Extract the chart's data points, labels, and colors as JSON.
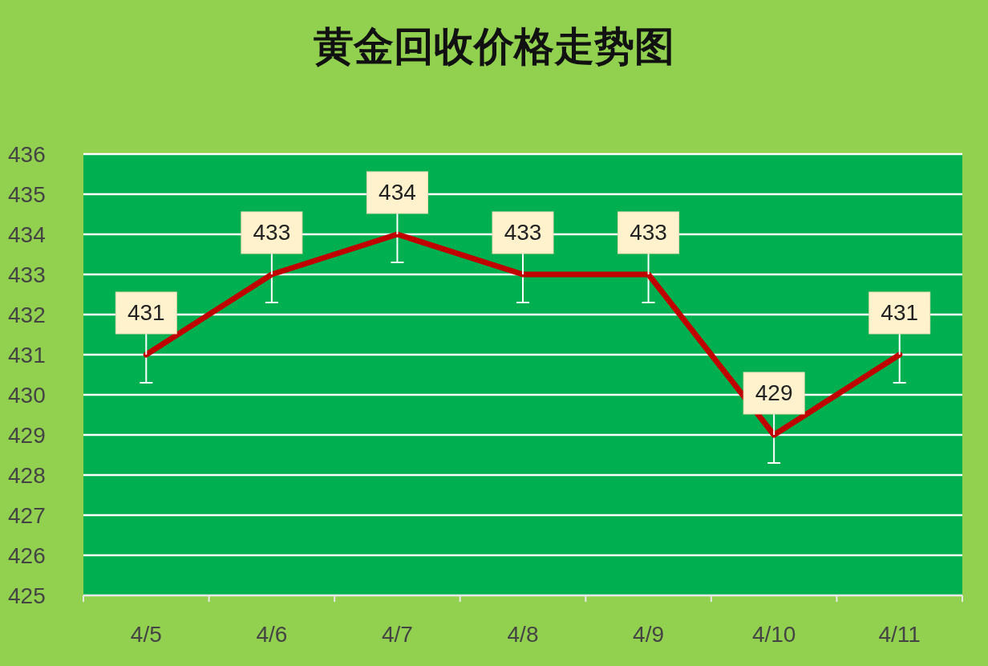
{
  "chart_data": {
    "type": "line",
    "title": "黄金回收价格走势图",
    "categories": [
      "4/5",
      "4/6",
      "4/7",
      "4/8",
      "4/9",
      "4/10",
      "4/11"
    ],
    "series": [
      {
        "color": "#c00000",
        "values": [
          431,
          433,
          434,
          433,
          433,
          429,
          431
        ],
        "errors": [
          [
            430.3,
            431
          ],
          [
            432.3,
            433
          ],
          [
            433.3,
            434
          ],
          [
            432.3,
            433
          ],
          [
            432.3,
            433
          ],
          [
            428.3,
            429
          ],
          [
            430.3,
            431
          ]
        ]
      }
    ],
    "ylim": [
      425,
      436
    ],
    "yticks": [
      425,
      426,
      427,
      428,
      429,
      430,
      431,
      432,
      433,
      434,
      435,
      436
    ],
    "grid": "y",
    "data_labels": true,
    "marker": "none",
    "line_style": "solid"
  }
}
